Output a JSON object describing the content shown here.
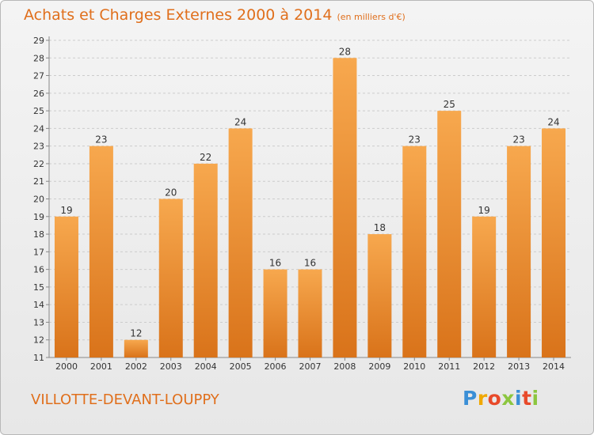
{
  "header": {
    "title": "Achats et Charges Externes 2000 à 2014",
    "subtitle": "(en milliers d'€)"
  },
  "commune": "VILLOTTE-DEVANT-LOUPPY",
  "logo": {
    "letters": [
      "P",
      "r",
      "o",
      "x",
      "i",
      "t",
      "i"
    ],
    "colors": [
      "#3a8fd6",
      "#f0a800",
      "#e84a2a",
      "#8cc63f",
      "#3a8fd6",
      "#e84a2a",
      "#8cc63f"
    ]
  },
  "colors": {
    "bar_light": "#f7a84e",
    "bar_dark": "#d9731a",
    "title": "#e06f1c",
    "grid": "#cccccc"
  },
  "chart_data": {
    "type": "bar",
    "title": "Achats et Charges Externes 2000 à 2014",
    "subtitle": "(en milliers d'€)",
    "categories": [
      "2000",
      "2001",
      "2002",
      "2003",
      "2004",
      "2005",
      "2006",
      "2007",
      "2008",
      "2009",
      "2010",
      "2011",
      "2012",
      "2013",
      "2014"
    ],
    "values": [
      19,
      23,
      12,
      20,
      22,
      24,
      16,
      16,
      28,
      18,
      23,
      25,
      19,
      23,
      24
    ],
    "ylim": [
      11,
      29
    ],
    "yticks": [
      11,
      12,
      13,
      14,
      15,
      16,
      17,
      18,
      19,
      20,
      21,
      22,
      23,
      24,
      25,
      26,
      27,
      28,
      29
    ],
    "xlabel": "",
    "ylabel": "",
    "grid": "horizontal-dashed",
    "data_labels": true
  }
}
